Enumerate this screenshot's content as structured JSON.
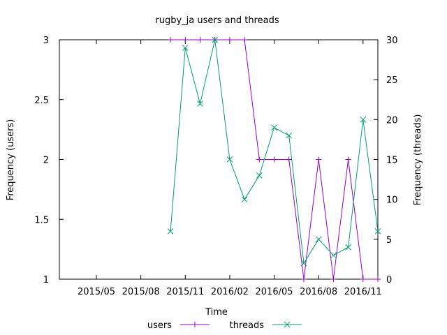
{
  "chart_data": {
    "type": "line",
    "title": "rugby_ja users and threads",
    "xlabel": "Time",
    "ylabel_left": "Frequency (users)",
    "ylabel_right": "Frequency (threads)",
    "x_ticks": [
      "2015/05",
      "2015/08",
      "2015/11",
      "2016/02",
      "2016/05",
      "2016/08",
      "2016/11"
    ],
    "ylim_left": [
      1,
      3
    ],
    "yticks_left": [
      "1",
      "1.5",
      "2",
      "2.5",
      "3"
    ],
    "ylim_right": [
      0,
      30
    ],
    "yticks_right": [
      "0",
      "5",
      "10",
      "15",
      "20",
      "25",
      "30"
    ],
    "x": [
      "2015/10",
      "2015/11",
      "2015/12",
      "2016/01",
      "2016/02",
      "2016/03",
      "2016/04",
      "2016/05",
      "2016/06",
      "2016/07",
      "2016/08",
      "2016/09",
      "2016/10",
      "2016/11",
      "2016/12"
    ],
    "legend_position": "bottom",
    "series": [
      {
        "name": "users",
        "axis": "left",
        "color": "#9400d3",
        "marker": "plus",
        "values": [
          3,
          3,
          3,
          3,
          3,
          3,
          2,
          2,
          2,
          1,
          2,
          1,
          2,
          1,
          1
        ]
      },
      {
        "name": "threads",
        "axis": "right",
        "color": "#009e73",
        "marker": "cross",
        "values": [
          6,
          29,
          22,
          30,
          15,
          10,
          13,
          19,
          18,
          2,
          5,
          3,
          4,
          20,
          6
        ]
      }
    ]
  }
}
